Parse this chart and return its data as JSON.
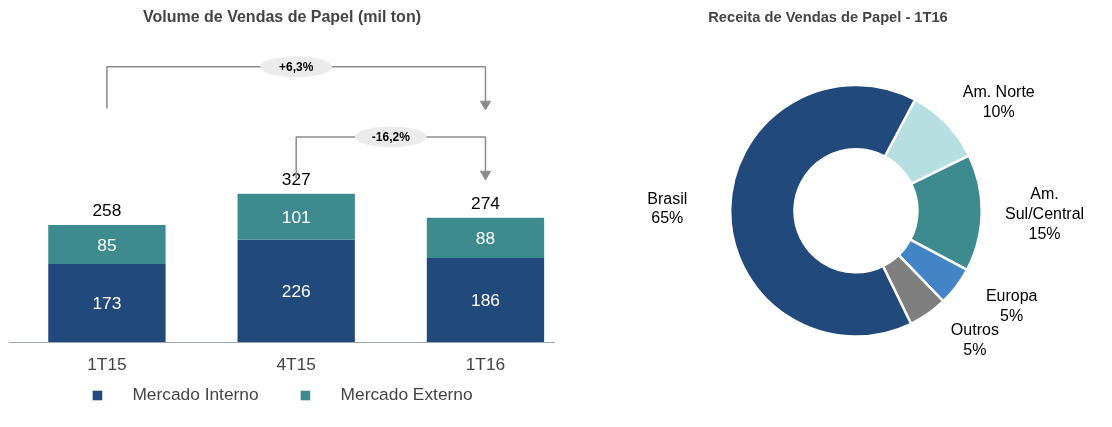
{
  "chart_data": [
    {
      "type": "bar",
      "title": "Volume de Vendas de Papel (mil ton)",
      "categories": [
        "1T15",
        "4T15",
        "1T16"
      ],
      "stacked": true,
      "data_labels": true,
      "totals": [
        "258",
        "327",
        "274"
      ],
      "legend": "bottom",
      "series": [
        {
          "name": "Mercado Interno",
          "color": "#21497b",
          "values": [
            173,
            226,
            186
          ]
        },
        {
          "name": "Mercado Externo",
          "color": "#3d8b8f",
          "values": [
            85,
            101,
            88
          ]
        }
      ],
      "annotations": [
        "+6,3%",
        "-16,2%"
      ]
    },
    {
      "type": "donut",
      "title": "Receita de Vendas de Papel - 1T16",
      "categories": [
        "Am. Norte",
        "Am. Sul/Central",
        "Europa",
        "Outros",
        "Brasil"
      ],
      "values": [
        10,
        15,
        5,
        5,
        65
      ],
      "colors": [
        "#b7dfe2",
        "#3d8b8f",
        "#4384c7",
        "#7f7f7f",
        "#21497b"
      ],
      "value_labels": [
        "10%",
        "15%",
        "5%",
        "5%",
        "65%"
      ]
    }
  ]
}
